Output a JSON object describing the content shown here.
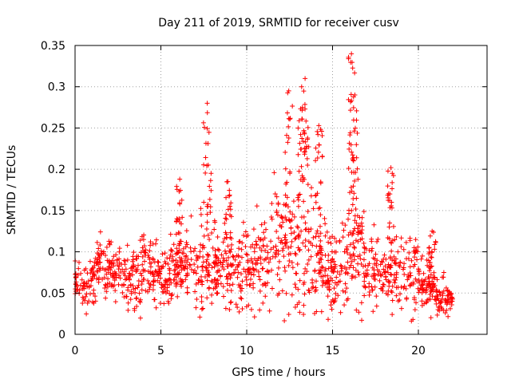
{
  "chart_data": {
    "type": "scatter",
    "title": "Day 211 of 2019, SRMTID for receiver cusv",
    "xlabel": "GPS time / hours",
    "ylabel": "SRMTID / TECUs",
    "xlim": [
      0,
      24
    ],
    "ylim": [
      0,
      0.35
    ],
    "xticks": [
      0,
      5,
      10,
      15,
      20
    ],
    "xtick_labels": [
      "0",
      "5",
      "10",
      "15",
      "20"
    ],
    "yticks": [
      0,
      0.05,
      0.1,
      0.15,
      0.2,
      0.25,
      0.3,
      0.35
    ],
    "ytick_labels": [
      "0",
      "0.05",
      "0.1",
      "0.15",
      "0.2",
      "0.25",
      "0.3",
      "0.35"
    ],
    "grid": true,
    "marker": "+",
    "color": "#ff0000",
    "series": [
      {
        "name": "SRMTID",
        "envelope": {
          "x": [
            0,
            0.5,
            1,
            1.5,
            2,
            2.5,
            3,
            3.5,
            4,
            4.5,
            5,
            5.5,
            6,
            6.5,
            7,
            7.5,
            8,
            8.5,
            9,
            9.5,
            10,
            10.5,
            11,
            11.5,
            12,
            12.5,
            13,
            13.5,
            14,
            14.5,
            15,
            15.5,
            16,
            16.5,
            17,
            17.5,
            18,
            18.5,
            19,
            19.5,
            20,
            20.5,
            21,
            21.5,
            22
          ],
          "median": [
            0.06,
            0.055,
            0.065,
            0.085,
            0.08,
            0.075,
            0.07,
            0.07,
            0.08,
            0.085,
            0.065,
            0.07,
            0.08,
            0.075,
            0.08,
            0.085,
            0.085,
            0.08,
            0.075,
            0.07,
            0.075,
            0.08,
            0.085,
            0.1,
            0.11,
            0.1,
            0.1,
            0.1,
            0.095,
            0.08,
            0.07,
            0.075,
            0.095,
            0.11,
            0.085,
            0.075,
            0.075,
            0.07,
            0.08,
            0.075,
            0.07,
            0.06,
            0.05,
            0.045,
            0.04
          ],
          "spread": [
            0.02,
            0.018,
            0.02,
            0.025,
            0.025,
            0.022,
            0.022,
            0.025,
            0.03,
            0.03,
            0.025,
            0.028,
            0.03,
            0.03,
            0.035,
            0.04,
            0.04,
            0.035,
            0.03,
            0.03,
            0.035,
            0.035,
            0.04,
            0.05,
            0.06,
            0.05,
            0.05,
            0.05,
            0.045,
            0.035,
            0.03,
            0.035,
            0.05,
            0.055,
            0.04,
            0.03,
            0.03,
            0.03,
            0.035,
            0.03,
            0.028,
            0.022,
            0.018,
            0.015,
            0.012
          ]
        },
        "peaks": [
          {
            "x": 7.7,
            "y": 0.28
          },
          {
            "x": 12.45,
            "y": 0.295
          },
          {
            "x": 13.2,
            "y": 0.3
          },
          {
            "x": 13.4,
            "y": 0.31
          },
          {
            "x": 14.2,
            "y": 0.253
          },
          {
            "x": 16.1,
            "y": 0.34
          },
          {
            "x": 16.3,
            "y": 0.29
          },
          {
            "x": 18.4,
            "y": 0.202
          },
          {
            "x": 6.1,
            "y": 0.188
          },
          {
            "x": 8.9,
            "y": 0.185
          },
          {
            "x": 20.8,
            "y": 0.125
          }
        ]
      }
    ]
  }
}
